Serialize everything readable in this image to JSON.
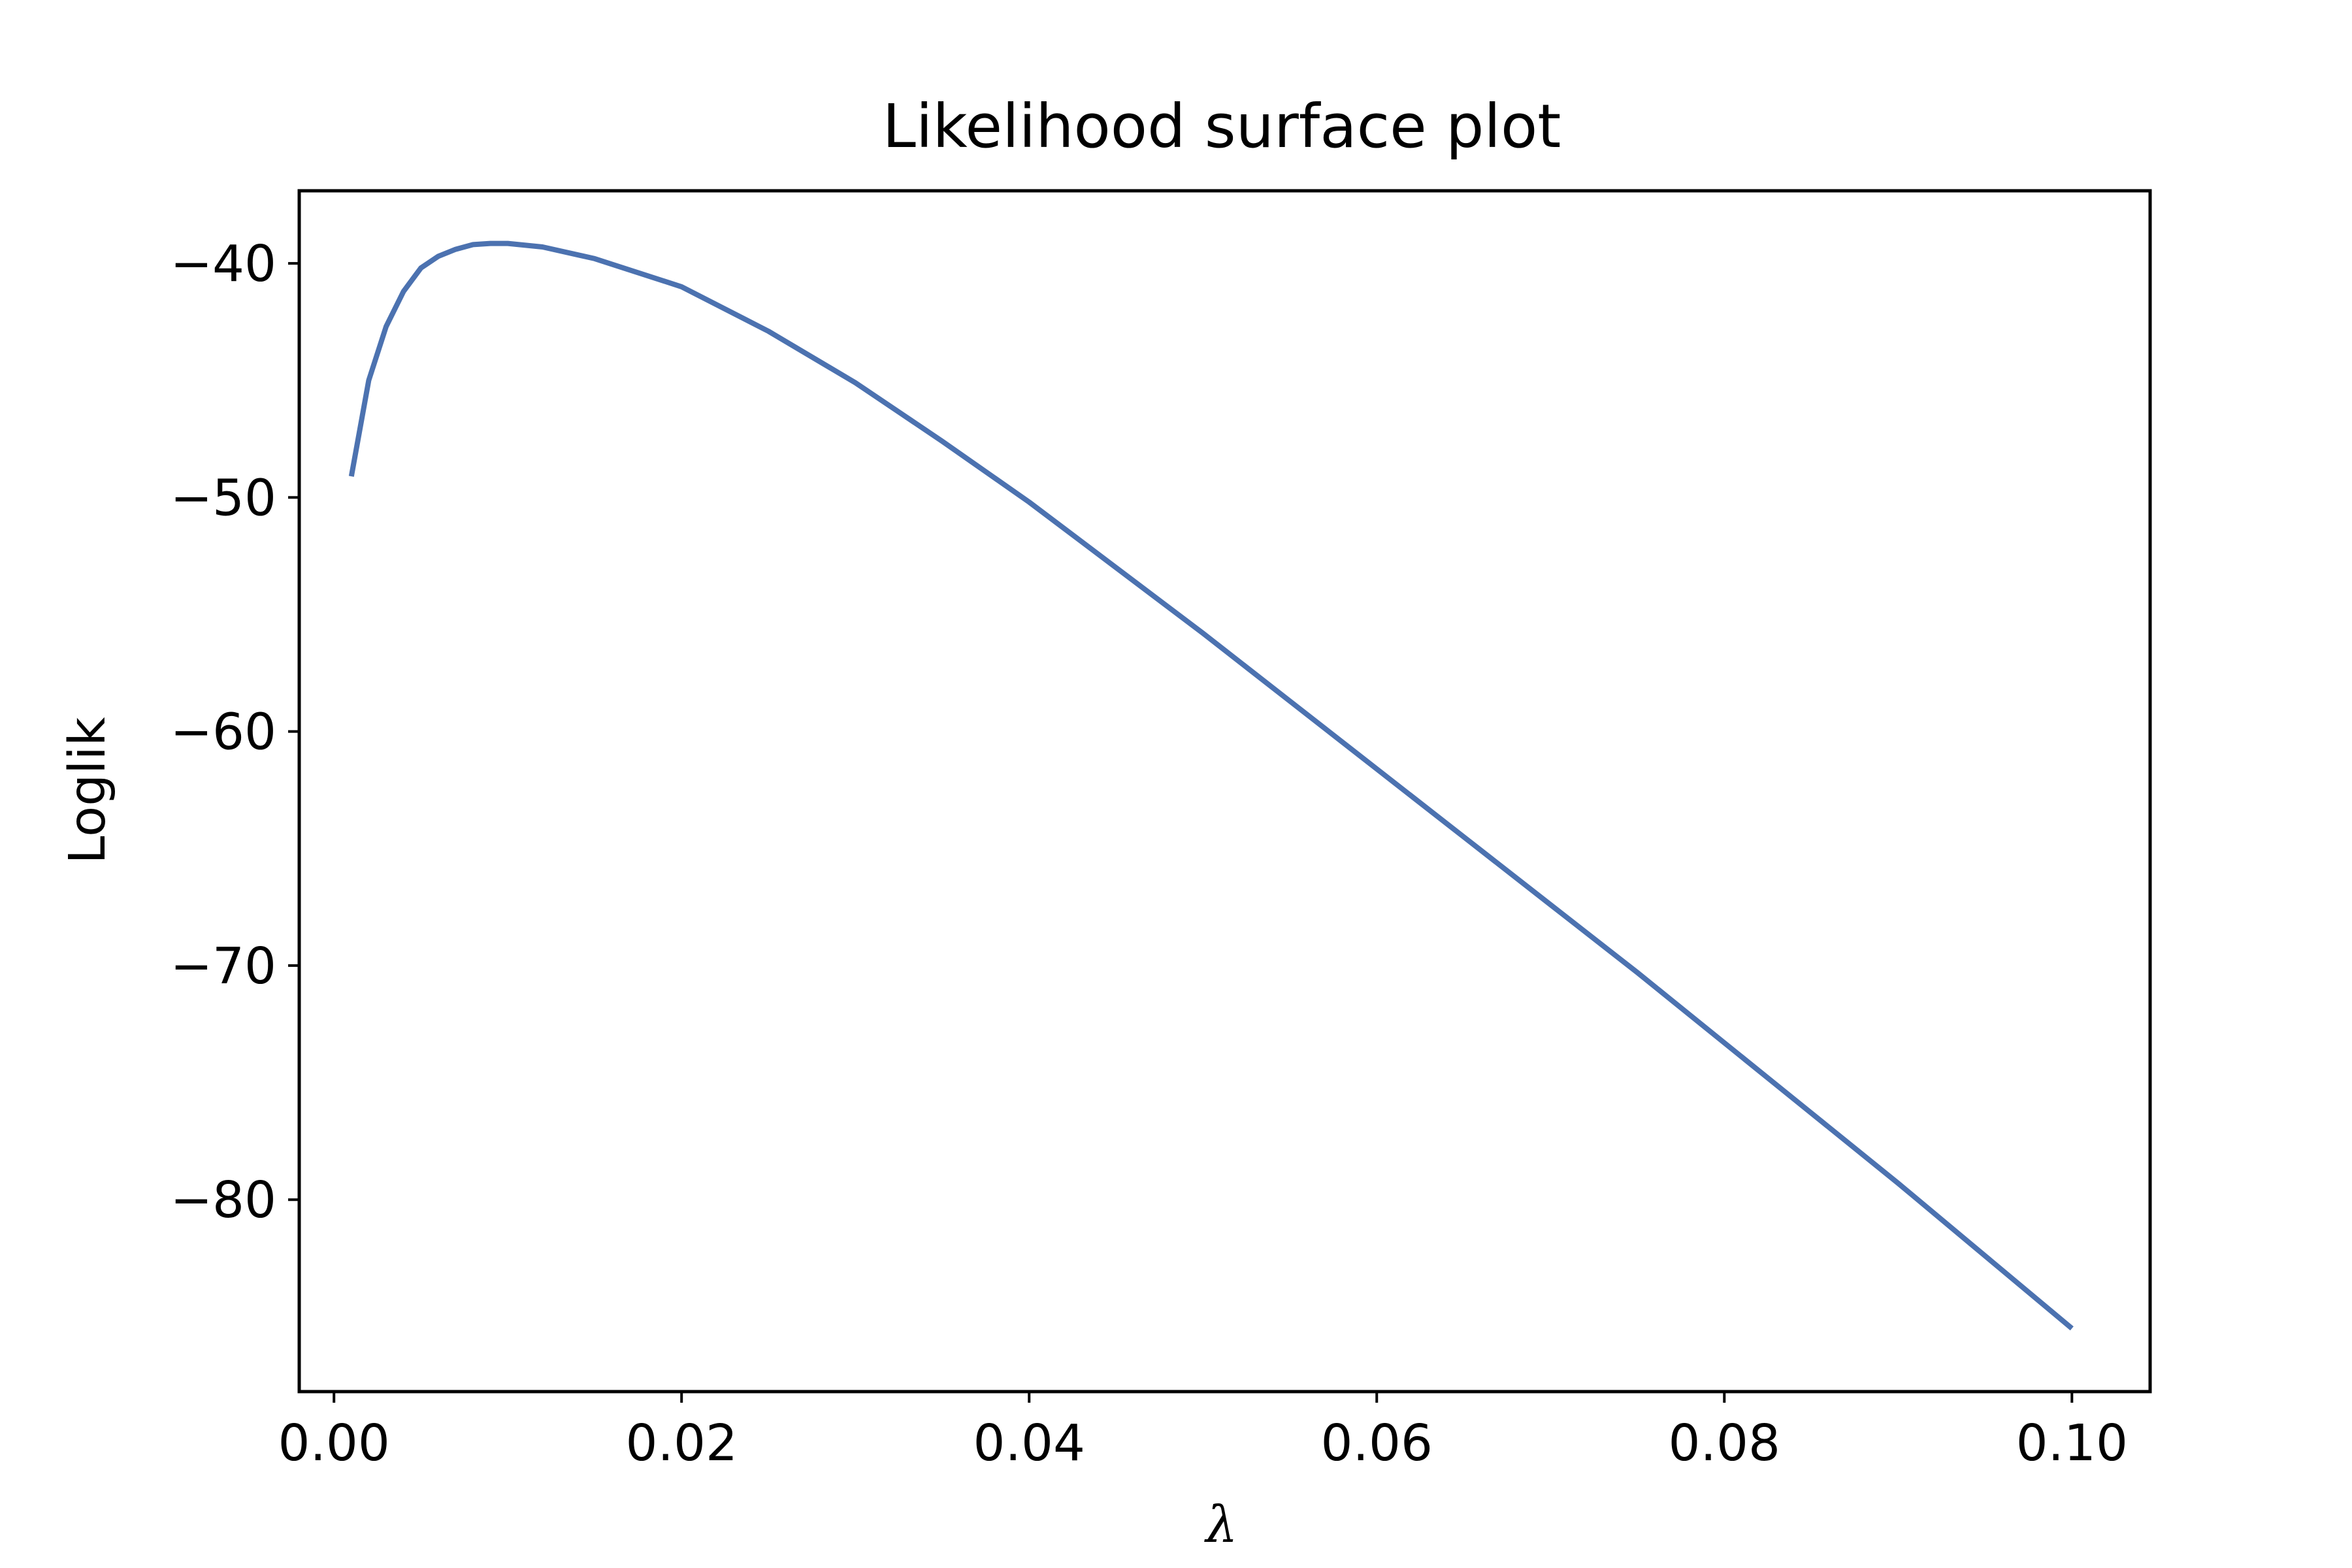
{
  "chart_data": {
    "type": "line",
    "title": "Likelihood surface plot",
    "xlabel": "λ",
    "ylabel": "Loglik",
    "xlim": [
      -0.002,
      0.1045
    ],
    "ylim": [
      -88.2,
      -36.9
    ],
    "xticks": [
      0.0,
      0.02,
      0.04,
      0.06,
      0.08,
      0.1
    ],
    "xtick_labels": [
      "0.00",
      "0.02",
      "0.04",
      "0.06",
      "0.08",
      "0.10"
    ],
    "yticks": [
      -40,
      -50,
      -60,
      -70,
      -80
    ],
    "ytick_labels": [
      "−40",
      "−50",
      "−60",
      "−70",
      "−80"
    ],
    "grid": false,
    "series": [
      {
        "color": "#4c72b0",
        "x": [
          0.001,
          0.002,
          0.003,
          0.004,
          0.005,
          0.006,
          0.007,
          0.008,
          0.009,
          0.01,
          0.012,
          0.015,
          0.02,
          0.025,
          0.03,
          0.035,
          0.04,
          0.045,
          0.05,
          0.055,
          0.06,
          0.065,
          0.07,
          0.075,
          0.08,
          0.085,
          0.09,
          0.095,
          0.1
        ],
        "y": [
          -49.1,
          -45.0,
          -42.7,
          -41.2,
          -40.2,
          -39.7,
          -39.4,
          -39.2,
          -39.15,
          -39.15,
          -39.3,
          -39.8,
          -41.0,
          -42.9,
          -45.1,
          -47.6,
          -50.2,
          -53.0,
          -55.8,
          -58.7,
          -61.6,
          -64.5,
          -67.4,
          -70.3,
          -73.3,
          -76.3,
          -79.3,
          -82.4,
          -85.5
        ]
      }
    ]
  }
}
